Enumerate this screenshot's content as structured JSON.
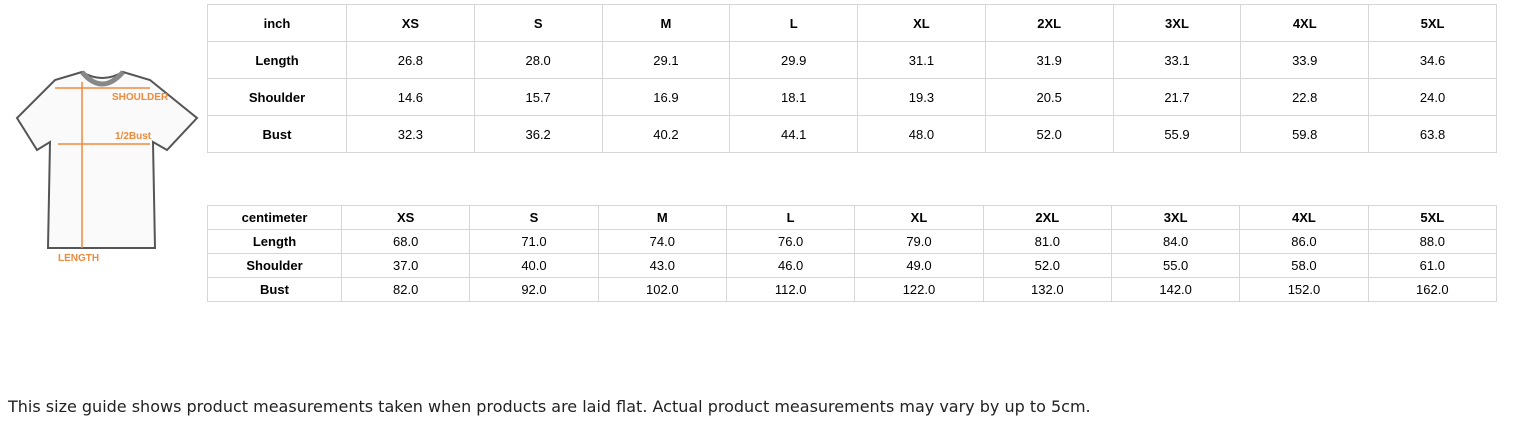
{
  "figure": {
    "labels": {
      "shoulder": "SHOULDER",
      "bust": "1/2Bust",
      "length": "LENGTH"
    }
  },
  "inch_table": {
    "header": [
      "inch",
      "XS",
      "S",
      "M",
      "L",
      "XL",
      "2XL",
      "3XL",
      "4XL",
      "5XL"
    ],
    "rows": [
      [
        "Length",
        "26.8",
        "28.0",
        "29.1",
        "29.9",
        "31.1",
        "31.9",
        "33.1",
        "33.9",
        "34.6"
      ],
      [
        "Shoulder",
        "14.6",
        "15.7",
        "16.9",
        "18.1",
        "19.3",
        "20.5",
        "21.7",
        "22.8",
        "24.0"
      ],
      [
        "Bust",
        "32.3",
        "36.2",
        "40.2",
        "44.1",
        "48.0",
        "52.0",
        "55.9",
        "59.8",
        "63.8"
      ]
    ]
  },
  "cm_table": {
    "header": [
      "centimeter",
      "XS",
      "S",
      "M",
      "L",
      "XL",
      "2XL",
      "3XL",
      "4XL",
      "5XL"
    ],
    "rows": [
      [
        "Length",
        "68.0",
        "71.0",
        "74.0",
        "76.0",
        "79.0",
        "81.0",
        "84.0",
        "86.0",
        "88.0"
      ],
      [
        "Shoulder",
        "37.0",
        "40.0",
        "43.0",
        "46.0",
        "49.0",
        "52.0",
        "55.0",
        "58.0",
        "61.0"
      ],
      [
        "Bust",
        "82.0",
        "92.0",
        "102.0",
        "112.0",
        "122.0",
        "132.0",
        "142.0",
        "152.0",
        "162.0"
      ]
    ]
  },
  "note": "This size guide shows product measurements taken when products are laid flat. Actual product measurements may vary by up to 5cm."
}
